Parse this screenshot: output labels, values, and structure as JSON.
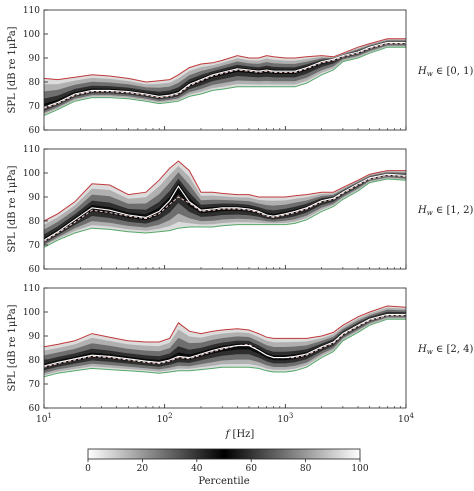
{
  "chart_data": [
    {
      "type": "line",
      "panel_label": "H_w ∈ [0, 1)",
      "panel_label_parts": {
        "var": "H",
        "sub": "w",
        "range": " ∈ [0, 1)"
      },
      "ylabel": "SPL [dB re 1μPa]",
      "ylim": [
        60,
        110
      ],
      "yticks": [
        "60",
        "70",
        "80",
        "90",
        "100",
        "110"
      ],
      "x_scale": "log",
      "xlim": [
        10,
        10000
      ],
      "freq_hz": [
        10,
        13,
        18,
        25,
        35,
        50,
        70,
        90,
        110,
        130,
        160,
        200,
        250,
        300,
        400,
        500,
        600,
        700,
        800,
        1000,
        1200,
        1500,
        2000,
        2500,
        3000,
        4000,
        5000,
        7000,
        10000
      ],
      "series": [
        {
          "role": "upper",
          "color": "#c0393b",
          "values": [
            81.5,
            81,
            82,
            83,
            82.5,
            81.5,
            80,
            80.5,
            81,
            83,
            86,
            87.5,
            88,
            89,
            91,
            90,
            90,
            91,
            90.5,
            90,
            90,
            90.5,
            91,
            90.5,
            92,
            94.5,
            96,
            98,
            98
          ]
        },
        {
          "role": "median",
          "color": "#ffffff",
          "values": [
            69.5,
            71.5,
            75,
            76.5,
            76.5,
            76,
            75,
            74,
            74.5,
            75.5,
            79,
            81,
            83,
            84,
            85.5,
            85,
            84.5,
            85,
            84.5,
            84.5,
            84.5,
            86,
            88.5,
            89.5,
            91,
            92.5,
            94.5,
            96.5,
            96.5
          ]
        },
        {
          "role": "mean",
          "color": "#f2c7c7",
          "values": [
            69,
            71,
            74.5,
            76,
            76,
            75.5,
            74.5,
            73.5,
            74,
            75,
            78.5,
            80.5,
            82.5,
            83.5,
            85,
            84.5,
            84,
            84.5,
            84,
            84,
            84,
            85.5,
            88,
            89,
            90.5,
            92,
            94,
            96,
            96
          ]
        },
        {
          "role": "lower",
          "color": "#55a868",
          "values": [
            66,
            68.5,
            72,
            73.5,
            73.5,
            73,
            72,
            71,
            71.5,
            72,
            74,
            75,
            76.5,
            77,
            78,
            78,
            78,
            78,
            78,
            78,
            78,
            79.5,
            83,
            85,
            88.5,
            90,
            92,
            94.5,
            94.5
          ]
        }
      ]
    },
    {
      "type": "line",
      "panel_label": "H_w ∈ [1, 2)",
      "panel_label_parts": {
        "var": "H",
        "sub": "w",
        "range": " ∈ [1, 2)"
      },
      "ylabel": "SPL [dB re 1μPa]",
      "ylim": [
        60,
        110
      ],
      "yticks": [
        "60",
        "70",
        "80",
        "90",
        "100",
        "110"
      ],
      "x_scale": "log",
      "xlim": [
        10,
        10000
      ],
      "freq_hz": [
        10,
        13,
        18,
        25,
        35,
        50,
        70,
        90,
        110,
        130,
        160,
        200,
        250,
        300,
        400,
        500,
        600,
        700,
        800,
        1000,
        1200,
        1500,
        2000,
        2500,
        3000,
        4000,
        5000,
        7000,
        10000
      ],
      "series": [
        {
          "role": "upper",
          "color": "#c0393b",
          "values": [
            80,
            83,
            88,
            95.5,
            95,
            91,
            92,
            97,
            102,
            105,
            101,
            92,
            92,
            91.5,
            91,
            91,
            90,
            90,
            90,
            90,
            90.5,
            91,
            92,
            92,
            94,
            97,
            99.5,
            101,
            101
          ]
        },
        {
          "role": "median",
          "color": "#ffffff",
          "values": [
            72,
            75.5,
            80.5,
            85.5,
            84.5,
            82.5,
            81.5,
            84,
            88.5,
            94.5,
            88,
            84.5,
            85,
            85.5,
            85.5,
            85,
            84,
            82.5,
            82,
            83,
            84,
            85.5,
            88.5,
            89.5,
            92,
            95.5,
            98,
            99.5,
            99
          ]
        },
        {
          "role": "mean",
          "color": "#f2c7c7",
          "values": [
            71.5,
            75,
            79.5,
            84.5,
            83.5,
            82,
            81,
            83,
            87,
            90,
            87.5,
            84,
            84.5,
            85,
            85,
            84.5,
            83.5,
            82,
            81.5,
            82.5,
            83.5,
            85,
            88,
            89,
            91.5,
            95,
            97.5,
            99,
            98.5
          ]
        },
        {
          "role": "lower",
          "color": "#55a868",
          "values": [
            69,
            72,
            75,
            77,
            76.5,
            75.5,
            75,
            75.5,
            76,
            77,
            77.5,
            77.5,
            77.5,
            78,
            78.5,
            78.5,
            78.5,
            78.5,
            78.5,
            78.5,
            79,
            80.5,
            84,
            86,
            89,
            92.5,
            96,
            97.5,
            97
          ]
        }
      ]
    },
    {
      "type": "line",
      "panel_label": "H_w ∈ [2, 4)",
      "panel_label_parts": {
        "var": "H",
        "sub": "w",
        "range": " ∈ [2, 4)"
      },
      "ylabel": "SPL [dB re 1μPa]",
      "ylim": [
        60,
        110
      ],
      "yticks": [
        "60",
        "70",
        "80",
        "90",
        "100",
        "110"
      ],
      "x_scale": "log",
      "xlim": [
        10,
        10000
      ],
      "xticks": [
        {
          "base": "10",
          "exp": "1"
        },
        {
          "base": "10",
          "exp": "2"
        },
        {
          "base": "10",
          "exp": "3"
        },
        {
          "base": "10",
          "exp": "4"
        }
      ],
      "xlabel_parts": {
        "var": "f",
        "unit": " [Hz]"
      },
      "freq_hz": [
        10,
        13,
        18,
        25,
        35,
        50,
        70,
        90,
        110,
        130,
        160,
        200,
        250,
        300,
        400,
        500,
        600,
        700,
        800,
        1000,
        1200,
        1500,
        2000,
        2500,
        3000,
        4000,
        5000,
        7000,
        10000
      ],
      "series": [
        {
          "role": "upper",
          "color": "#c0393b",
          "values": [
            85.5,
            86.5,
            88,
            91,
            89.5,
            88,
            87.5,
            87.5,
            89,
            95.5,
            92,
            91,
            92,
            92.5,
            93,
            92.5,
            91,
            89.5,
            89,
            89,
            89,
            89,
            90,
            91.5,
            94.5,
            98,
            100,
            102.5,
            102
          ]
        },
        {
          "role": "median",
          "color": "#ffffff",
          "values": [
            77.5,
            79,
            80.5,
            82,
            81.5,
            80.5,
            79.5,
            79,
            80,
            81.5,
            81,
            82.5,
            84,
            85,
            86,
            86,
            84,
            82,
            81,
            81,
            81.5,
            82.5,
            85.5,
            87.5,
            91,
            94.5,
            97,
            99,
            99
          ]
        },
        {
          "role": "mean",
          "color": "#f2c7c7",
          "values": [
            77,
            78.5,
            80,
            81.5,
            81,
            80,
            79,
            78.5,
            79.5,
            81,
            80.5,
            82,
            83.5,
            84.5,
            86,
            86.5,
            84,
            82,
            81,
            81,
            81,
            82,
            85,
            87,
            90.5,
            94,
            96.5,
            98.5,
            98.5
          ]
        },
        {
          "role": "lower",
          "color": "#55a868",
          "values": [
            73,
            74.5,
            75.5,
            76.5,
            76,
            75.5,
            75,
            74.5,
            75,
            75.5,
            75.5,
            76,
            76.5,
            77,
            77,
            77,
            76.5,
            75.5,
            75,
            75,
            75.5,
            77,
            81,
            83.5,
            88,
            91.5,
            94.5,
            97,
            97
          ]
        }
      ]
    }
  ],
  "colorbar": {
    "label": "Percentile",
    "ticks": [
      "0",
      "20",
      "40",
      "60",
      "80",
      "100"
    ],
    "range": [
      0,
      100
    ]
  }
}
